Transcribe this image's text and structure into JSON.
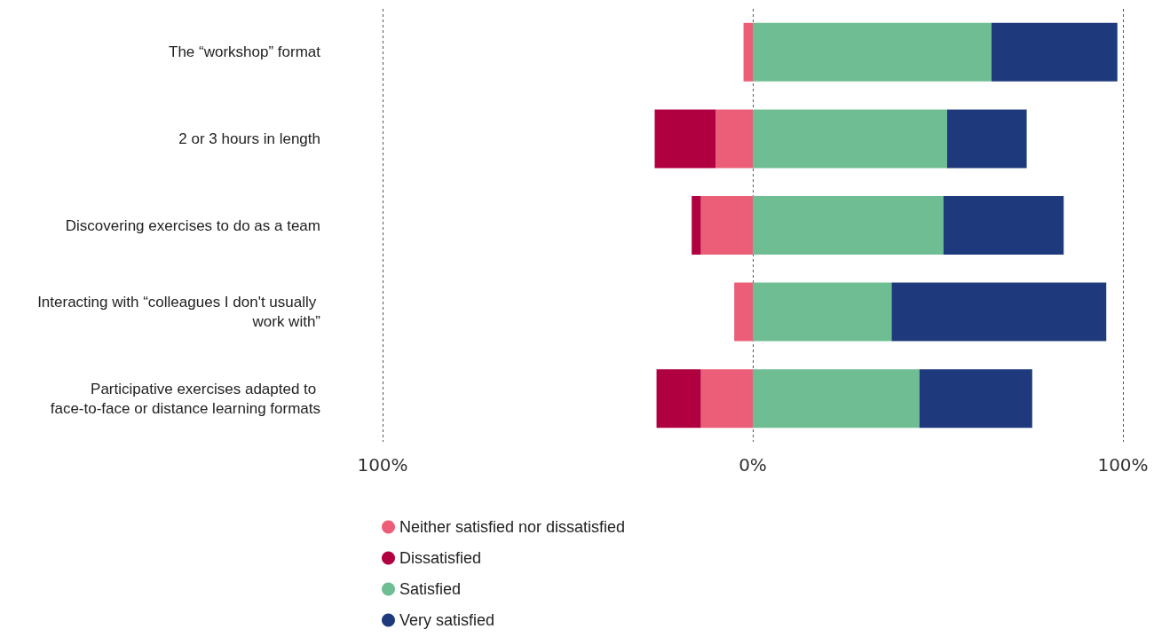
{
  "chart_data": {
    "type": "bar",
    "orientation": "horizontal",
    "stacked": true,
    "categories": [
      "The “workshop” format",
      "2 or 3 hours in length",
      "Discovering exercises to do as a team",
      "Interacting with “colleagues I don't usually work with”",
      "Participative exercises adapted to face-to-face or distance learning formats"
    ],
    "series": [
      {
        "name": "Neither satisfied nor dissatisfied",
        "color": "#ec5e78",
        "values": [
          -2.5,
          -10,
          -14,
          -5,
          -14
        ]
      },
      {
        "name": "Dissatisfied",
        "color": "#b0003f",
        "values": [
          0,
          -16.5,
          -2.5,
          0,
          -12
        ]
      },
      {
        "name": "Satisfied",
        "color": "#6fbe93",
        "values": [
          64.5,
          52.5,
          51.5,
          37.5,
          45
        ]
      },
      {
        "name": "Very satisfied",
        "color": "#1f3a7c",
        "values": [
          34,
          21.5,
          32.5,
          58,
          30.5
        ]
      }
    ],
    "xlim": [
      -100,
      100
    ],
    "xticks": [
      {
        "value": -100,
        "label": "100%"
      },
      {
        "value": 0,
        "label": "0%"
      },
      {
        "value": 100,
        "label": "100%"
      }
    ],
    "grid": "x",
    "legend": "bottom left"
  }
}
